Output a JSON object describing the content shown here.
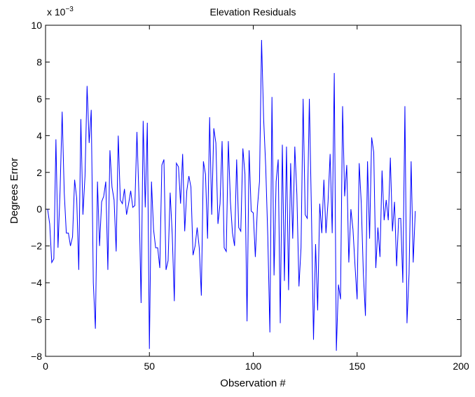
{
  "chart_data": {
    "type": "line",
    "title": "Elevation Residuals",
    "xlabel": "Observation #",
    "ylabel": "Degrees Error",
    "y_multiplier": {
      "base": "x 10",
      "exponent": "−3"
    },
    "xlim": [
      0,
      200
    ],
    "ylim": [
      -8,
      10
    ],
    "x_ticks": [
      0,
      50,
      100,
      150,
      200
    ],
    "y_ticks": [
      -8,
      -6,
      -4,
      -2,
      0,
      2,
      4,
      6,
      8,
      10
    ],
    "x_tick_labels": [
      "0",
      "50",
      "100",
      "150",
      "200"
    ],
    "y_tick_labels": [
      "−8",
      "−6",
      "−4",
      "−2",
      "0",
      "2",
      "4",
      "6",
      "8",
      "10"
    ],
    "grid": false,
    "line_color": "#0000ff",
    "series": [
      {
        "x_start": 1,
        "x_step": 1,
        "values": [
          0.0,
          -0.8,
          -2.9,
          -2.7,
          3.8,
          -2.1,
          1.0,
          5.3,
          0.9,
          -1.3,
          -1.3,
          -2.0,
          -1.5,
          1.6,
          0.6,
          -3.3,
          4.9,
          -0.3,
          1.8,
          6.7,
          3.6,
          5.4,
          -4.0,
          -6.5,
          1.5,
          -2.0,
          0.4,
          0.7,
          1.5,
          -3.3,
          3.2,
          1.2,
          0.5,
          -2.3,
          4.0,
          0.5,
          0.3,
          1.1,
          -0.3,
          0.3,
          1.0,
          0.1,
          0.2,
          4.2,
          0.6,
          -5.1,
          4.8,
          0.1,
          4.7,
          -7.6,
          1.5,
          -1.1,
          -2.1,
          -2.1,
          -3.2,
          2.4,
          2.7,
          -3.3,
          -2.8,
          0.9,
          -1.4,
          -5.0,
          2.5,
          2.3,
          0.3,
          3.0,
          -1.2,
          1.0,
          1.8,
          1.2,
          -2.5,
          -2.0,
          -1.0,
          -2.1,
          -4.7,
          2.6,
          1.9,
          -1.6,
          5.0,
          -0.3,
          4.4,
          3.6,
          -0.8,
          0.3,
          3.7,
          -2.1,
          -2.3,
          3.7,
          0.4,
          -1.3,
          -2.0,
          2.7,
          -1.0,
          -1.2,
          3.3,
          1.9,
          -6.1,
          3.2,
          -0.1,
          -0.2,
          -2.6,
          0.1,
          1.5,
          9.2,
          4.9,
          2.3,
          -1.5,
          -6.7,
          6.1,
          -3.6,
          1.5,
          2.7,
          -6.2,
          3.5,
          -3.9,
          3.4,
          -4.4,
          2.5,
          -1.6,
          3.4,
          0.8,
          -4.2,
          -2.1,
          6.0,
          -0.3,
          -0.5,
          6.0,
          -0.1,
          -7.1,
          -1.9,
          -5.5,
          0.3,
          -1.3,
          1.6,
          -1.3,
          0.4,
          3.0,
          -1.3,
          7.4,
          -7.7,
          -4.1,
          -4.9,
          5.6,
          0.7,
          2.4,
          -2.9,
          0.0,
          -1.1,
          -3.1,
          -4.9,
          2.5,
          0.3,
          -3.5,
          -5.8,
          2.6,
          -1.6,
          3.9,
          3.1,
          -3.2,
          -1.0,
          -2.6,
          2.1,
          -0.6,
          0.5,
          -0.6,
          2.8,
          -1.2,
          0.4,
          -3.1,
          -0.5,
          -0.5,
          -4.0,
          5.6,
          -6.2,
          -3.5,
          2.6,
          -2.9,
          -0.1
        ]
      }
    ]
  }
}
